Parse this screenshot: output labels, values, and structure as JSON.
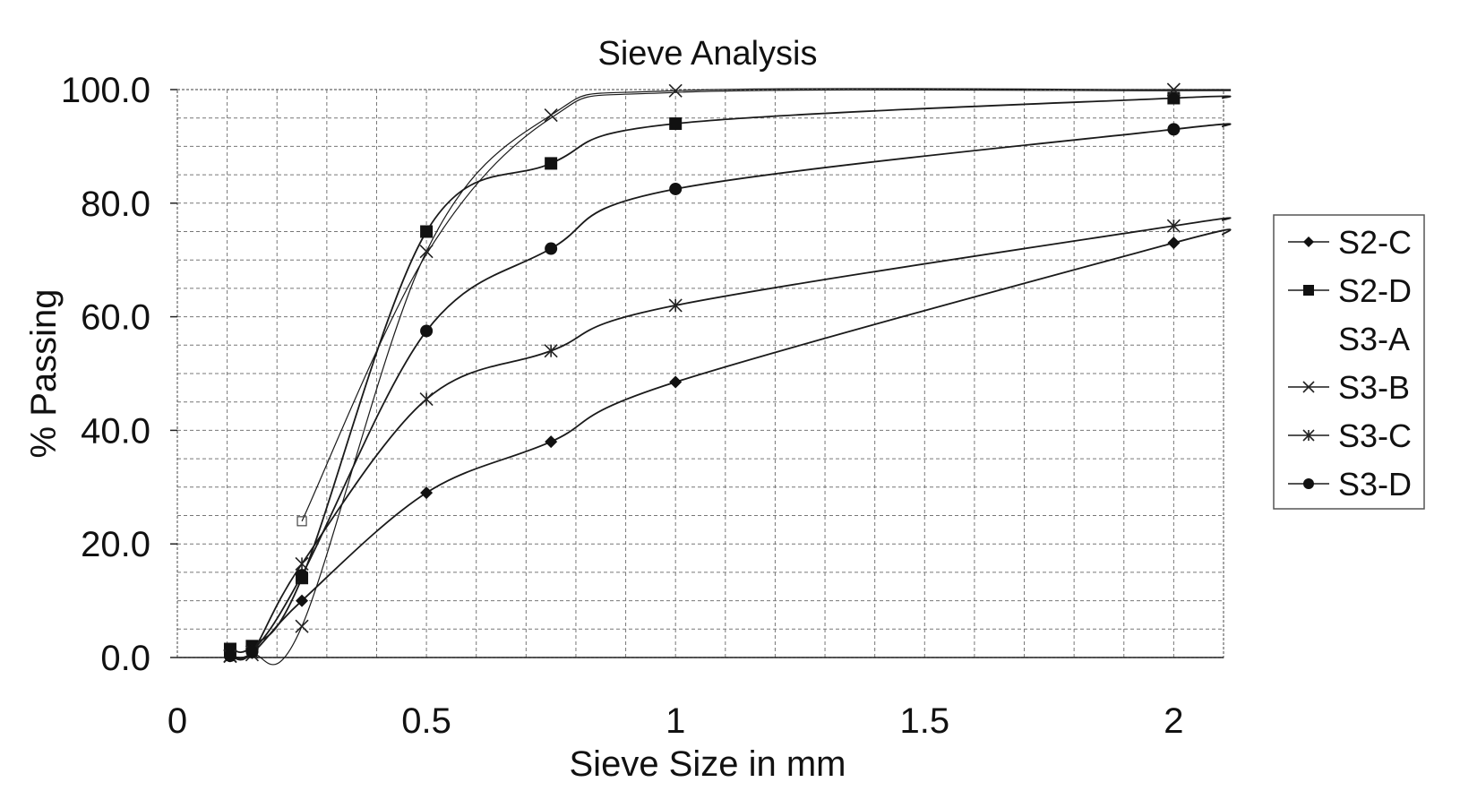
{
  "chart_data": {
    "type": "line",
    "title": "Sieve Analysis",
    "xlabel": "Sieve Size in mm",
    "ylabel": "% Passing",
    "xlim": [
      0,
      2.1
    ],
    "ylim": [
      0,
      100
    ],
    "x_ticks": [
      0,
      0.5,
      1,
      1.5,
      2
    ],
    "x_tick_labels": [
      "0",
      "0.5",
      "1",
      "1.5",
      "2"
    ],
    "y_ticks": [
      0,
      20,
      40,
      60,
      80,
      100
    ],
    "y_tick_labels": [
      "0.0",
      "20.0",
      "40.0",
      "60.0",
      "80.0",
      "100.0"
    ],
    "grid": true,
    "legend_position": "right",
    "series": [
      {
        "name": "S2-C",
        "marker": "diamond",
        "x": [
          0.106,
          0.15,
          0.25,
          0.5,
          0.75,
          1.0,
          2.0
        ],
        "y": [
          0.3,
          0.8,
          10.0,
          29.0,
          38.0,
          48.5,
          73.0
        ],
        "extend_to": [
          2.1,
          74.5
        ]
      },
      {
        "name": "S2-D",
        "marker": "square",
        "x": [
          0.106,
          0.15,
          0.25,
          0.5,
          0.75,
          1.0,
          2.0
        ],
        "y": [
          1.5,
          2.0,
          14.0,
          75.0,
          87.0,
          94.0,
          98.5
        ],
        "extend_to": [
          2.1,
          98.5
        ]
      },
      {
        "name": "S3-A",
        "marker": "none",
        "x": [
          0.25,
          0.5,
          0.75,
          1.0,
          2.0
        ],
        "y": [
          24.0,
          71.0,
          95.0,
          99.5,
          99.8
        ],
        "extend_to": [
          2.1,
          99.8
        ]
      },
      {
        "name": "S3-B",
        "marker": "x",
        "x": [
          0.106,
          0.15,
          0.25,
          0.5,
          0.75,
          1.0,
          2.0
        ],
        "y": [
          0.2,
          0.5,
          5.5,
          71.5,
          95.5,
          99.8,
          100.0
        ],
        "extend_to": [
          2.1,
          100.0
        ]
      },
      {
        "name": "S3-C",
        "marker": "asterisk",
        "x": [
          0.106,
          0.15,
          0.25,
          0.5,
          0.75,
          1.0,
          2.0
        ],
        "y": [
          0.3,
          1.0,
          16.5,
          45.5,
          54.0,
          62.0,
          76.0
        ],
        "extend_to": [
          2.1,
          77.0
        ]
      },
      {
        "name": "S3-D",
        "marker": "circle",
        "x": [
          0.106,
          0.15,
          0.25,
          0.5,
          0.75,
          1.0,
          2.0
        ],
        "y": [
          0.3,
          1.0,
          14.5,
          57.5,
          72.0,
          82.5,
          93.0
        ],
        "extend_to": [
          2.1,
          93.5
        ]
      }
    ]
  }
}
